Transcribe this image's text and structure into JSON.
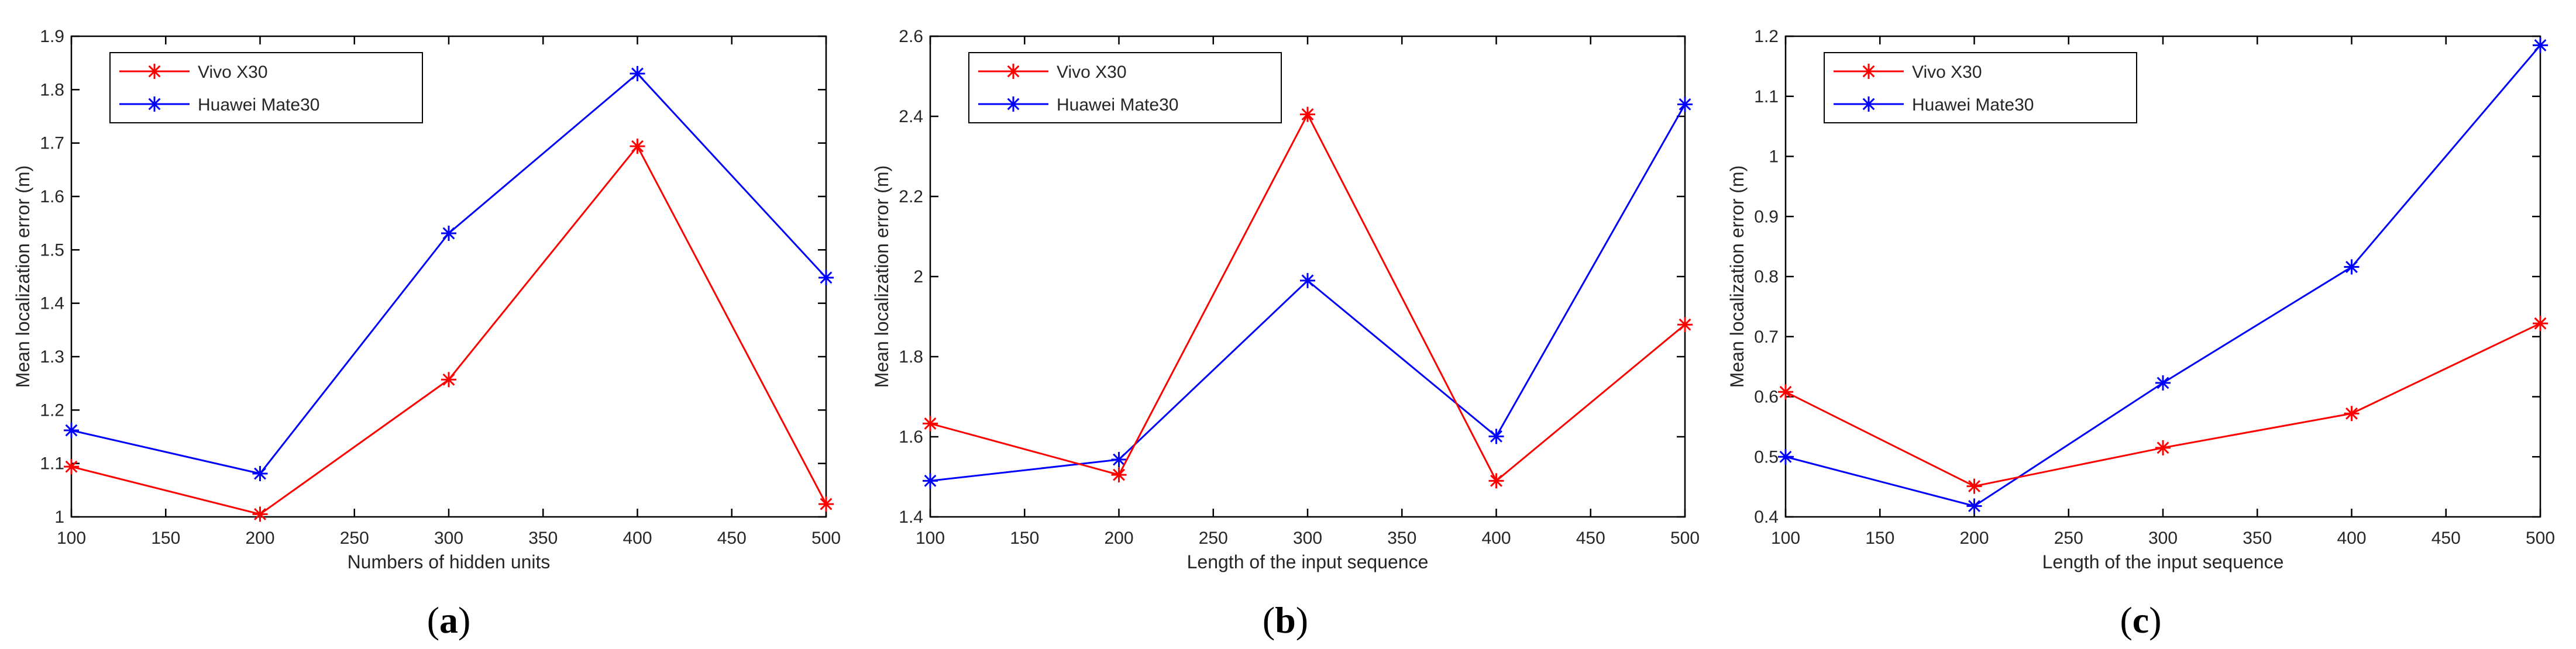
{
  "colors": {
    "red": "#ff0000",
    "blue": "#0000ff",
    "axis": "#262626",
    "frame": "#000000"
  },
  "chart_data": [
    {
      "panel_label": "a",
      "type": "line",
      "xlabel": "Numbers of hidden units",
      "ylabel": "Mean localization error (m)",
      "x": [
        100,
        200,
        300,
        400,
        500
      ],
      "xlim": [
        100,
        500
      ],
      "xticks": [
        100,
        150,
        200,
        250,
        300,
        350,
        400,
        450,
        500
      ],
      "ylim": [
        1,
        1.9
      ],
      "yticks": [
        1,
        1.1,
        1.2,
        1.3,
        1.4,
        1.5,
        1.6,
        1.7,
        1.8,
        1.9
      ],
      "legend_position": "top-left",
      "series": [
        {
          "name": "Vivo X30",
          "color": "red",
          "values": [
            1.094,
            1.005,
            1.257,
            1.694,
            1.024
          ]
        },
        {
          "name": "Huawei Mate30",
          "color": "blue",
          "values": [
            1.162,
            1.081,
            1.531,
            1.83,
            1.448
          ]
        }
      ]
    },
    {
      "panel_label": "b",
      "type": "line",
      "xlabel": "Length of the input sequence",
      "ylabel": "Mean localization error (m)",
      "x": [
        100,
        200,
        300,
        400,
        500
      ],
      "xlim": [
        100,
        500
      ],
      "xticks": [
        100,
        150,
        200,
        250,
        300,
        350,
        400,
        450,
        500
      ],
      "ylim": [
        1.4,
        2.6
      ],
      "yticks": [
        1.4,
        1.6,
        1.8,
        2,
        2.2,
        2.4,
        2.6
      ],
      "legend_position": "top-left",
      "series": [
        {
          "name": "Vivo X30",
          "color": "red",
          "values": [
            1.633,
            1.505,
            2.405,
            1.49,
            1.88
          ]
        },
        {
          "name": "Huawei Mate30",
          "color": "blue",
          "values": [
            1.49,
            1.543,
            1.99,
            1.601,
            2.43
          ]
        }
      ]
    },
    {
      "panel_label": "c",
      "type": "line",
      "xlabel": "Length of the input sequence",
      "ylabel": "Mean localization error (m)",
      "x": [
        100,
        200,
        300,
        400,
        500
      ],
      "xlim": [
        100,
        500
      ],
      "xticks": [
        100,
        150,
        200,
        250,
        300,
        350,
        400,
        450,
        500
      ],
      "ylim": [
        0.4,
        1.2
      ],
      "yticks": [
        0.4,
        0.5,
        0.6,
        0.7,
        0.8,
        0.9,
        1,
        1.1,
        1.2
      ],
      "legend_position": "top-left",
      "series": [
        {
          "name": "Vivo X30",
          "color": "red",
          "values": [
            0.608,
            0.451,
            0.515,
            0.572,
            0.722
          ]
        },
        {
          "name": "Huawei Mate30",
          "color": "blue",
          "values": [
            0.5,
            0.418,
            0.623,
            0.816,
            1.185
          ]
        }
      ]
    }
  ]
}
